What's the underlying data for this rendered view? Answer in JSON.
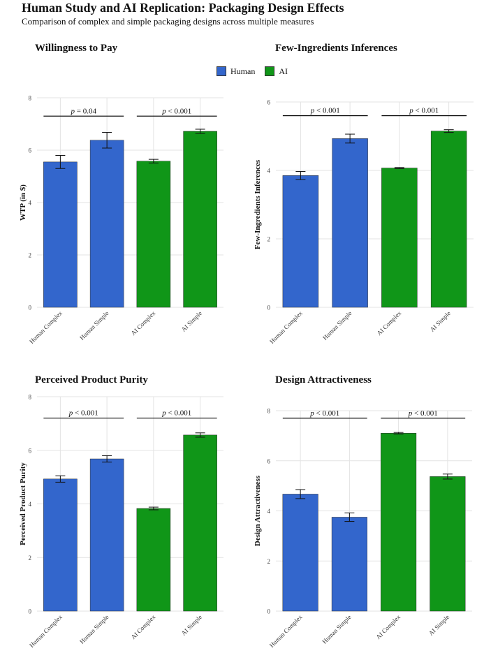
{
  "header": {
    "title": "Human Study and AI Replication: Packaging Design Effects",
    "subtitle": "Comparison of complex and simple packaging designs across multiple measures"
  },
  "legend": {
    "items": [
      {
        "label": "Human",
        "color": "#3366CC"
      },
      {
        "label": "AI",
        "color": "#109618"
      }
    ]
  },
  "chart_data": [
    {
      "type": "bar",
      "title": "Willingness to Pay",
      "ylabel": "WTP (in $)",
      "categories": [
        "Human Complex",
        "Human Simple",
        "AI Complex",
        "AI Simple"
      ],
      "values": [
        5.55,
        6.38,
        5.58,
        6.72
      ],
      "errors": [
        0.25,
        0.3,
        0.07,
        0.08
      ],
      "groups": [
        "Human",
        "Human",
        "AI",
        "AI"
      ],
      "ylim": [
        0,
        8
      ],
      "yticks": [
        "0",
        "2",
        "4",
        "6",
        "8"
      ],
      "grid": true,
      "comparisons": [
        {
          "from": 0,
          "to": 1,
          "y": 7.3,
          "p_prefix": "p",
          "p_text": " = 0.04"
        },
        {
          "from": 2,
          "to": 3,
          "y": 7.3,
          "p_prefix": "p",
          "p_text": " < 0.001"
        }
      ]
    },
    {
      "type": "bar",
      "title": "Few-Ingredients Inferences",
      "ylabel": "Few-Ingredients Inferences",
      "categories": [
        "Human Complex",
        "Human Simple",
        "AI Complex",
        "AI Simple"
      ],
      "values": [
        3.85,
        4.93,
        4.07,
        5.15
      ],
      "errors": [
        0.12,
        0.13,
        0.015,
        0.04
      ],
      "groups": [
        "Human",
        "Human",
        "AI",
        "AI"
      ],
      "ylim": [
        0,
        6
      ],
      "yticks": [
        "0",
        "2",
        "4",
        "6"
      ],
      "grid": true,
      "comparisons": [
        {
          "from": 0,
          "to": 1,
          "y": 5.6,
          "p_prefix": "p",
          "p_text": " < 0.001"
        },
        {
          "from": 2,
          "to": 3,
          "y": 5.6,
          "p_prefix": "p",
          "p_text": " < 0.001"
        }
      ]
    },
    {
      "type": "bar",
      "title": "Perceived Product Purity",
      "ylabel": "Perceived Product Purity",
      "categories": [
        "Human Complex",
        "Human Simple",
        "AI Complex",
        "AI Simple"
      ],
      "values": [
        4.93,
        5.68,
        3.83,
        6.57
      ],
      "errors": [
        0.12,
        0.12,
        0.05,
        0.08
      ],
      "groups": [
        "Human",
        "Human",
        "AI",
        "AI"
      ],
      "ylim": [
        0,
        8
      ],
      "yticks": [
        "0",
        "2",
        "4",
        "6",
        "8"
      ],
      "grid": true,
      "comparisons": [
        {
          "from": 0,
          "to": 1,
          "y": 7.2,
          "p_prefix": "p",
          "p_text": " < 0.001"
        },
        {
          "from": 2,
          "to": 3,
          "y": 7.2,
          "p_prefix": "p",
          "p_text": " < 0.001"
        }
      ]
    },
    {
      "type": "bar",
      "title": "Design Attractiveness",
      "ylabel": "Design Attractiveness",
      "categories": [
        "Human Complex",
        "Human Simple",
        "AI Complex",
        "AI Simple"
      ],
      "values": [
        4.67,
        3.75,
        7.1,
        5.37
      ],
      "errors": [
        0.18,
        0.17,
        0.03,
        0.1
      ],
      "groups": [
        "Human",
        "Human",
        "AI",
        "AI"
      ],
      "ylim": [
        0,
        8
      ],
      "yticks": [
        "0",
        "2",
        "4",
        "6",
        "8"
      ],
      "grid": true,
      "comparisons": [
        {
          "from": 0,
          "to": 1,
          "y": 7.7,
          "p_prefix": "p",
          "p_text": " < 0.001"
        },
        {
          "from": 2,
          "to": 3,
          "y": 7.7,
          "p_prefix": "p",
          "p_text": " < 0.001"
        }
      ]
    }
  ]
}
